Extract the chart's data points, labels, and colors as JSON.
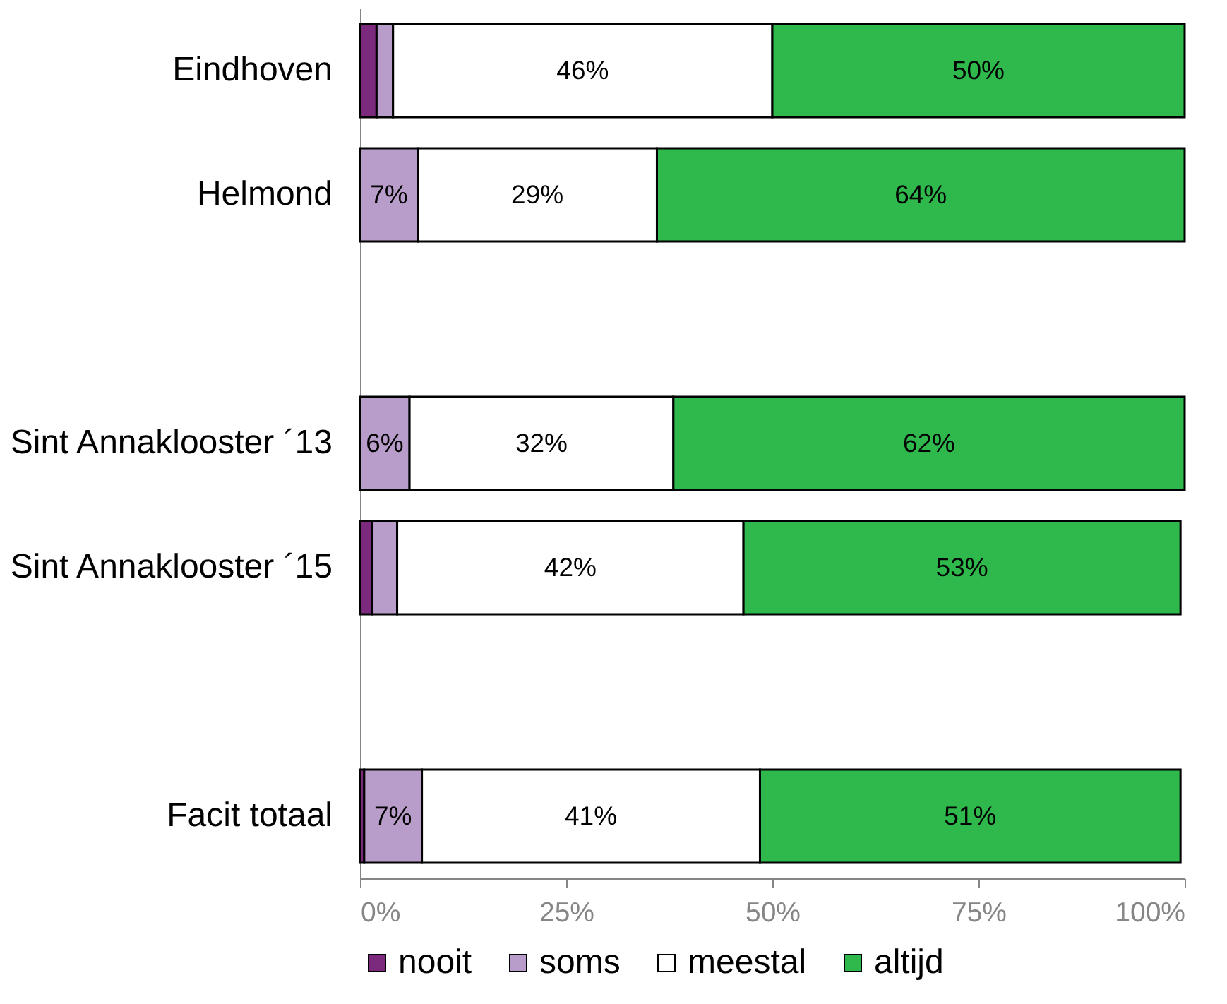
{
  "chart_data": {
    "type": "bar",
    "orientation": "horizontal",
    "stacked": true,
    "categories": [
      "Eindhoven",
      "Helmond",
      null,
      "Sint Annaklooster ´13",
      "Sint Annaklooster ´15",
      null,
      "Facit totaal"
    ],
    "series": [
      {
        "name": "nooit",
        "color": "#7b2a7e",
        "values": [
          2,
          null,
          null,
          null,
          1.5,
          null,
          0.5
        ]
      },
      {
        "name": "soms",
        "color": "#b89cc9",
        "values": [
          2,
          7,
          null,
          6,
          3,
          null,
          7
        ],
        "value_labels": [
          null,
          "7%",
          null,
          "6%",
          null,
          null,
          "7%"
        ]
      },
      {
        "name": "meestal",
        "color": "#ffffff",
        "values": [
          46,
          29,
          null,
          32,
          42,
          null,
          41
        ],
        "value_labels": [
          "46%",
          "29%",
          null,
          "32%",
          "42%",
          null,
          "41%"
        ]
      },
      {
        "name": "altijd",
        "color": "#2fb84b",
        "values": [
          50,
          64,
          null,
          62,
          53,
          null,
          51
        ],
        "value_labels": [
          "50%",
          "64%",
          null,
          "62%",
          "53%",
          null,
          "51%"
        ]
      }
    ],
    "xlim": [
      0,
      100
    ],
    "xticks": [
      {
        "value": 0,
        "label": "0%"
      },
      {
        "value": 25,
        "label": "25%"
      },
      {
        "value": 50,
        "label": "50%"
      },
      {
        "value": 75,
        "label": "75%"
      },
      {
        "value": 100,
        "label": "100%"
      }
    ],
    "legend": "bottom",
    "grid": false
  }
}
